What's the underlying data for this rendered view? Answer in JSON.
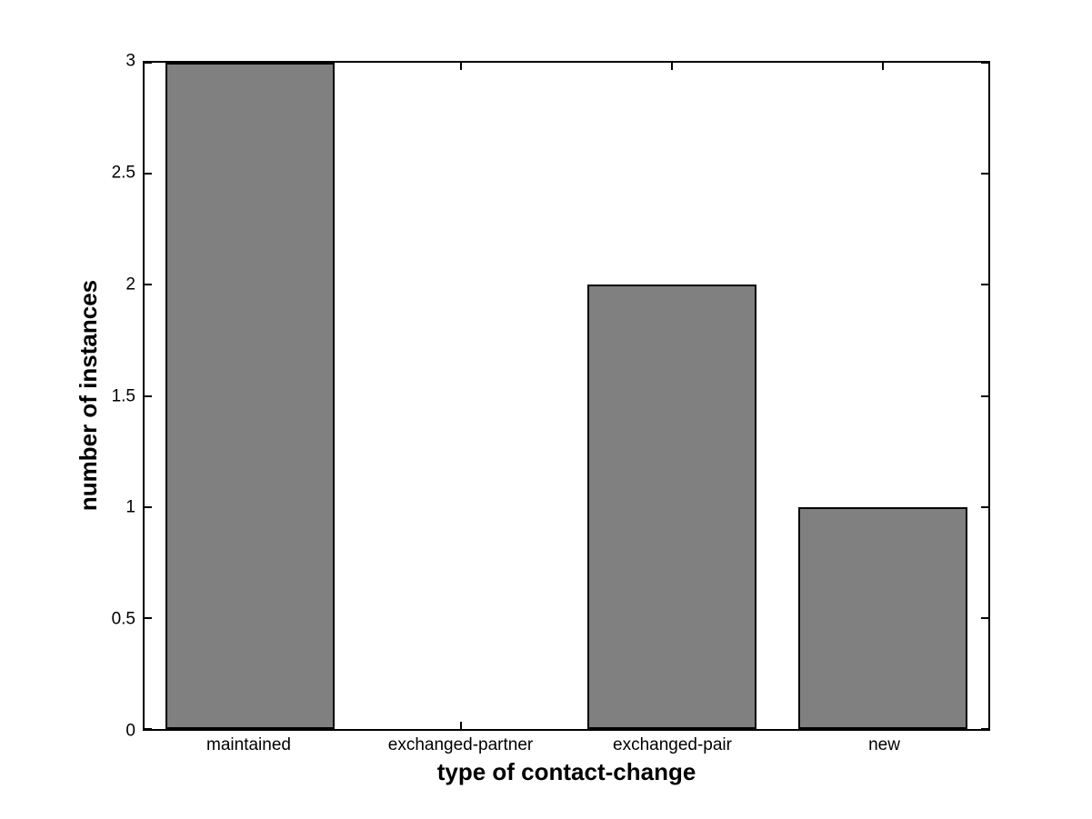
{
  "chart_data": {
    "type": "bar",
    "categories": [
      "maintained",
      "exchanged-partner",
      "exchanged-pair",
      "new"
    ],
    "values": [
      3,
      0,
      2,
      1
    ],
    "title": "",
    "xlabel": "type of contact-change",
    "ylabel": "number of instances",
    "ylim": [
      0,
      3
    ],
    "yticks": [
      0,
      0.5,
      1,
      1.5,
      2,
      2.5,
      3
    ],
    "ytick_labels": [
      "0",
      "0.5",
      "1",
      "1.5",
      "2",
      "2.5",
      "3"
    ],
    "bar_width_fraction": 0.8,
    "bar_color": "#808080",
    "bar_edge_color": "#000000",
    "axis_color": "#000000",
    "background_color": "#ffffff",
    "grid": false,
    "legend": "none"
  }
}
